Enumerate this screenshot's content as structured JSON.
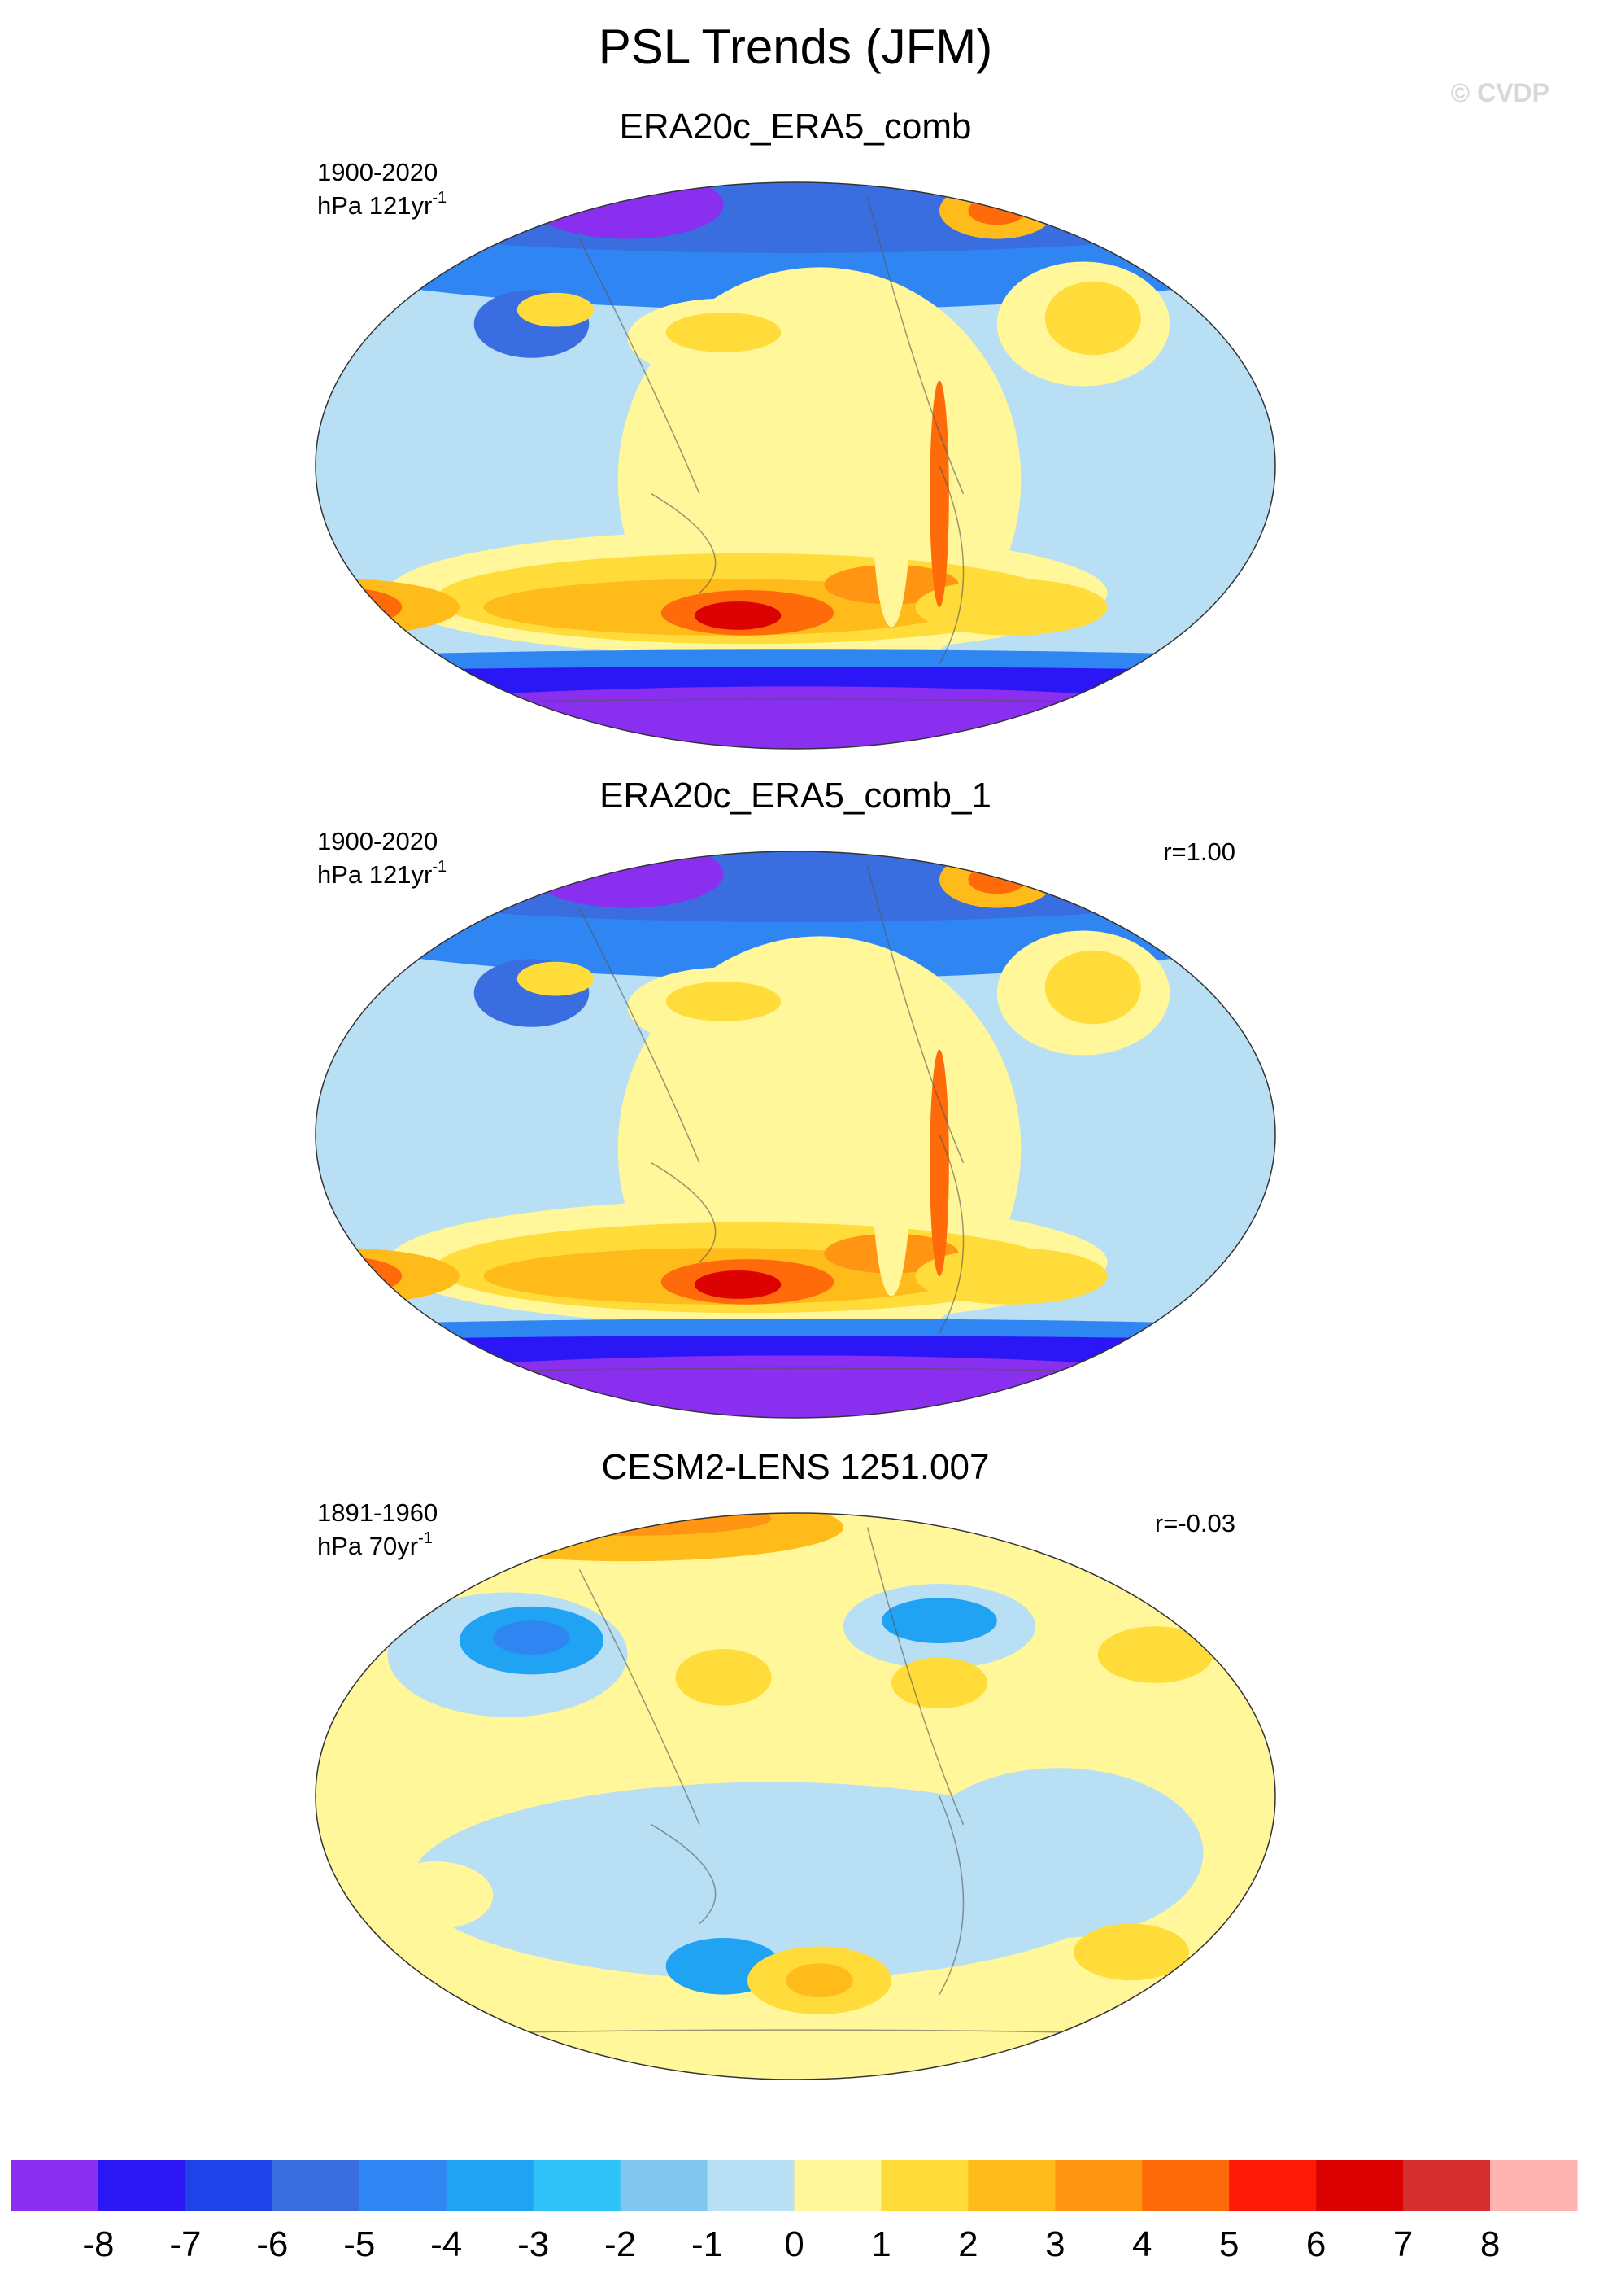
{
  "title": "PSL Trends (JFM)",
  "watermark": "© CVDP",
  "panels": [
    {
      "title": "ERA20c_ERA5_comb",
      "period": "1900-2020",
      "units": "hPa 121yr",
      "units_exponent": "-1"
    },
    {
      "title": "ERA20c_ERA5_comb_1",
      "period": "1900-2020",
      "units": "hPa 121yr",
      "units_exponent": "-1",
      "r": "r=1.00"
    },
    {
      "title": "CESM2-LENS 1251.007",
      "period": "1891-1960",
      "units": "hPa 70yr",
      "units_exponent": "-1",
      "r": "r=-0.03"
    }
  ],
  "colorbar": {
    "ticks": [
      -8,
      -7,
      -6,
      -5,
      -4,
      -3,
      -2,
      -1,
      0,
      1,
      2,
      3,
      4,
      5,
      6,
      7,
      8
    ],
    "colors": [
      "#8a2ff0",
      "#2b17f5",
      "#1f43e8",
      "#3a6ee0",
      "#2f86f2",
      "#1fa3f2",
      "#2fc3fa",
      "#80c6ef",
      "#b9dff4",
      "#fff799",
      "#ffdc3a",
      "#ffbb1a",
      "#ff9512",
      "#ff6a0a",
      "#fe1a06",
      "#dd0202",
      "#d52e2e",
      "#ffb3b3"
    ]
  }
}
